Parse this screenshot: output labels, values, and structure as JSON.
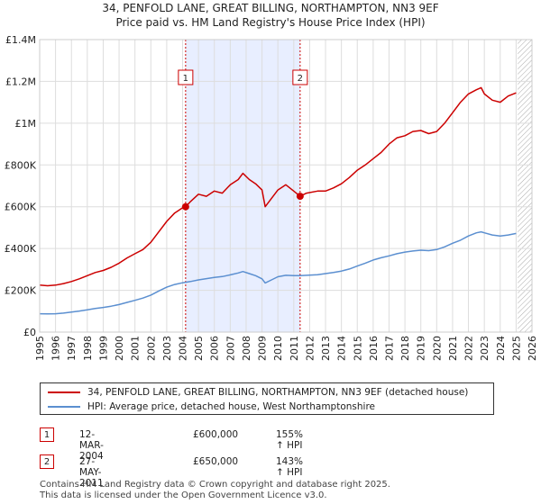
{
  "title_line1": "34, PENFOLD LANE, GREAT BILLING, NORTHAMPTON, NN3 9EF",
  "title_line2": "Price paid vs. HM Land Registry's House Price Index (HPI)",
  "colors": {
    "property": "#cc0000",
    "hpi": "#5b8fd0",
    "shade": "#e8eeff",
    "grid": "#dddddd"
  },
  "chart_data": {
    "type": "line",
    "title": "Price paid vs. HM Land Registry's House Price Index (HPI)",
    "xlabel": "",
    "ylabel": "",
    "xlim": [
      1995,
      2026
    ],
    "ylim": [
      0,
      1400000
    ],
    "y_ticks": [
      {
        "value": 0,
        "label": "£0"
      },
      {
        "value": 200000,
        "label": "£200K"
      },
      {
        "value": 400000,
        "label": "£400K"
      },
      {
        "value": 600000,
        "label": "£600K"
      },
      {
        "value": 800000,
        "label": "£800K"
      },
      {
        "value": 1000000,
        "label": "£1M"
      },
      {
        "value": 1200000,
        "label": "£1.2M"
      },
      {
        "value": 1400000,
        "label": "£1.4M"
      }
    ],
    "x_ticks": [
      "1995",
      "1996",
      "1997",
      "1998",
      "1999",
      "2000",
      "2001",
      "2002",
      "2003",
      "2004",
      "2005",
      "2006",
      "2007",
      "2008",
      "2009",
      "2010",
      "2011",
      "2012",
      "2013",
      "2014",
      "2015",
      "2016",
      "2017",
      "2018",
      "2019",
      "2020",
      "2021",
      "2022",
      "2023",
      "2024",
      "2025",
      "2026"
    ],
    "shaded_period": [
      2004.19,
      2011.4
    ],
    "hatched_from": 2025.1,
    "series": [
      {
        "name": "34, PENFOLD LANE, GREAT BILLING, NORTHAMPTON, NN3 9EF (detached house)",
        "x": [
          1995.0,
          1995.5,
          1996.0,
          1996.5,
          1997.0,
          1997.5,
          1998.0,
          1998.5,
          1999.0,
          1999.5,
          2000.0,
          2000.5,
          2001.0,
          2001.5,
          2002.0,
          2002.5,
          2003.0,
          2003.5,
          2004.0,
          2004.19,
          2004.5,
          2005.0,
          2005.5,
          2006.0,
          2006.5,
          2007.0,
          2007.5,
          2007.8,
          2008.2,
          2008.6,
          2009.0,
          2009.2,
          2009.6,
          2010.0,
          2010.5,
          2011.0,
          2011.4,
          2011.8,
          2012.5,
          2013.0,
          2013.5,
          2014.0,
          2014.5,
          2015.0,
          2015.5,
          2016.0,
          2016.5,
          2017.0,
          2017.5,
          2018.0,
          2018.5,
          2019.0,
          2019.5,
          2020.0,
          2020.5,
          2021.0,
          2021.5,
          2022.0,
          2022.5,
          2022.8,
          2023.0,
          2023.5,
          2024.0,
          2024.5,
          2025.0
        ],
        "y": [
          225000,
          222000,
          225000,
          232000,
          242000,
          255000,
          270000,
          285000,
          295000,
          310000,
          330000,
          355000,
          375000,
          395000,
          430000,
          480000,
          530000,
          570000,
          595000,
          600000,
          625000,
          660000,
          650000,
          675000,
          665000,
          705000,
          730000,
          760000,
          730000,
          710000,
          680000,
          600000,
          640000,
          680000,
          705000,
          675000,
          650000,
          665000,
          675000,
          675000,
          690000,
          710000,
          740000,
          775000,
          800000,
          830000,
          860000,
          900000,
          930000,
          940000,
          960000,
          965000,
          950000,
          960000,
          1000000,
          1050000,
          1100000,
          1140000,
          1160000,
          1170000,
          1140000,
          1110000,
          1100000,
          1130000,
          1145000
        ]
      },
      {
        "name": "HPI: Average price, detached house, West Northamptonshire",
        "x": [
          1995.0,
          1995.5,
          1996.0,
          1996.5,
          1997.0,
          1997.5,
          1998.0,
          1998.5,
          1999.0,
          1999.5,
          2000.0,
          2000.5,
          2001.0,
          2001.5,
          2002.0,
          2002.5,
          2003.0,
          2003.5,
          2004.0,
          2004.5,
          2005.0,
          2005.5,
          2006.0,
          2006.5,
          2007.0,
          2007.5,
          2007.8,
          2008.2,
          2008.6,
          2009.0,
          2009.2,
          2009.6,
          2010.0,
          2010.5,
          2011.0,
          2011.4,
          2011.8,
          2012.5,
          2013.0,
          2013.5,
          2014.0,
          2014.5,
          2015.0,
          2015.5,
          2016.0,
          2016.5,
          2017.0,
          2017.5,
          2018.0,
          2018.5,
          2019.0,
          2019.5,
          2020.0,
          2020.5,
          2021.0,
          2021.5,
          2022.0,
          2022.5,
          2022.8,
          2023.0,
          2023.5,
          2024.0,
          2024.5,
          2025.0
        ],
        "y": [
          88000,
          87000,
          88000,
          91000,
          96000,
          101000,
          107000,
          113000,
          118000,
          124000,
          132000,
          142000,
          152000,
          163000,
          177000,
          197000,
          215000,
          228000,
          236000,
          242000,
          250000,
          256000,
          262000,
          266000,
          274000,
          283000,
          290000,
          280000,
          270000,
          255000,
          235000,
          250000,
          265000,
          272000,
          270000,
          270000,
          272000,
          275000,
          280000,
          285000,
          292000,
          302000,
          316000,
          330000,
          345000,
          356000,
          365000,
          375000,
          383000,
          388000,
          392000,
          390000,
          395000,
          408000,
          425000,
          440000,
          460000,
          475000,
          480000,
          475000,
          465000,
          460000,
          465000,
          472000
        ]
      }
    ],
    "sales": [
      {
        "id": "1",
        "x": 2004.19,
        "y": 600000,
        "date": "12-MAR-2004",
        "price": "£600,000",
        "hpi_change": "155% ↑ HPI"
      },
      {
        "id": "2",
        "x": 2011.4,
        "y": 650000,
        "date": "27-MAY-2011",
        "price": "£650,000",
        "hpi_change": "143% ↑ HPI"
      }
    ]
  },
  "legend": {
    "property_label": "34, PENFOLD LANE, GREAT BILLING, NORTHAMPTON, NN3 9EF (detached house)",
    "hpi_label": "HPI: Average price, detached house, West Northamptonshire"
  },
  "footer": {
    "line1": "Contains HM Land Registry data © Crown copyright and database right 2025.",
    "line2": "This data is licensed under the Open Government Licence v3.0."
  }
}
